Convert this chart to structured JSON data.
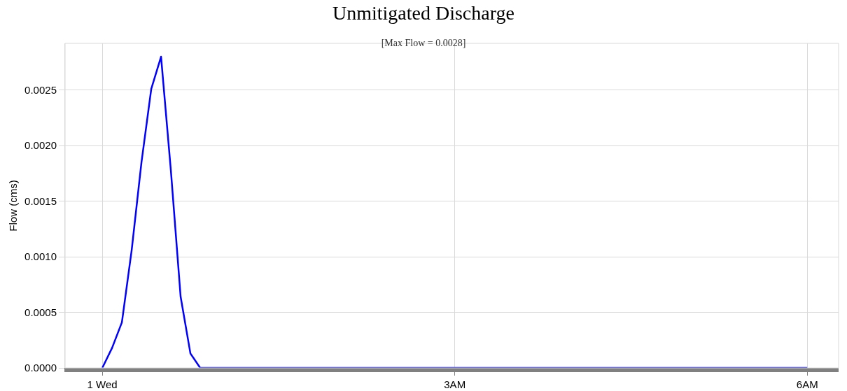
{
  "chart_data": {
    "type": "line",
    "title": "Unmitigated Discharge",
    "subtitle": "[Max Flow = 0.0028]",
    "ylabel": "Flow (cms)",
    "x": [
      "--03-01T00:00",
      "--03-01T00:05",
      "--03-01T00:10",
      "--03-01T00:15",
      "--03-01T00:20",
      "--03-01T00:25",
      "--03-01T00:30",
      "--03-01T00:35",
      "--03-01T00:40",
      "--03-01T00:45",
      "--03-01T00:50",
      "--03-01T00:55",
      "--03-01T06:00"
    ],
    "series": [
      {
        "color": "#0000ff",
        "values": [
          0,
          0.00018,
          0.00041,
          0.00106,
          0.00185,
          0.00251,
          0.0028,
          0.00178,
          0.00064,
          0.00013,
          0,
          0,
          0
        ]
      }
    ],
    "xlim": [
      "--02-28T23:41",
      "--03-01T06:16"
    ],
    "xticks": [
      {
        "value": "--03-01T00:00",
        "label": "1 Wed"
      },
      {
        "value": "--03-01T03:00",
        "label": "3AM"
      },
      {
        "value": "--03-01T06:00",
        "label": "6AM"
      }
    ],
    "ylim": [
      0,
      0.00292
    ],
    "yticks": [
      {
        "value": 0,
        "label": "0.0000"
      },
      {
        "value": 0.0005,
        "label": "0.0005"
      },
      {
        "value": 0.001,
        "label": "0.0010"
      },
      {
        "value": 0.0015,
        "label": "0.0015"
      },
      {
        "value": 0.002,
        "label": "0.0020"
      },
      {
        "value": 0.0025,
        "label": "0.0025"
      }
    ],
    "grid": true,
    "marker": "none",
    "line_style": "solid"
  }
}
